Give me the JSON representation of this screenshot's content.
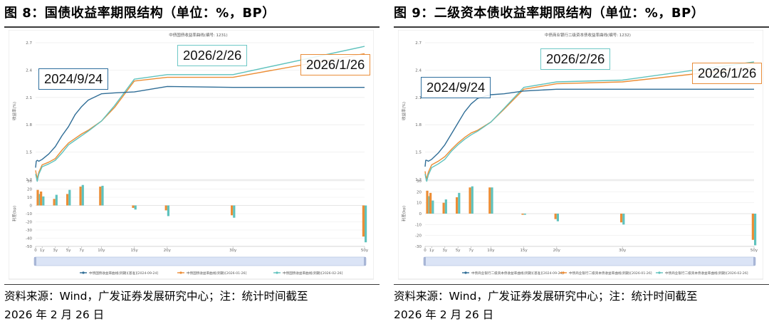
{
  "panels": [
    {
      "figure_title": "图 8：国债收益率期限结构（单位：%，BP）",
      "source_line1": "资料来源：Wind，广发证券发展研究中心；注：统计时间截至",
      "source_line2": "2026 年 2 月 26 日",
      "annotations": [
        "2024/9/24",
        "2026/2/26",
        "2026/1/26"
      ]
    },
    {
      "figure_title": "图 9：二级资本债收益率期限结构（单位：%，BP）",
      "source_line1": "资料来源：Wind，广发证券发展研究中心；注：统计时间截至",
      "source_line2": "2026 年 2 月 26 日",
      "annotations": [
        "2024/9/24",
        "2026/2/26",
        "2026/1/26"
      ]
    }
  ],
  "colors": {
    "blue": "#2f6d96",
    "orange": "#ec8d35",
    "cyan": "#5fc2bd"
  },
  "chart_data": [
    {
      "type": "line",
      "title": "中债国债收益率曲线(编号: 1231)",
      "ylabel": "收益率(%)",
      "ylabel2": "利差(bp)",
      "ylim": [
        1.2,
        2.7
      ],
      "yticks": [
        1.2,
        1.5,
        1.8,
        2.1,
        2.4,
        2.7
      ],
      "ylim2": [
        -50,
        30
      ],
      "yticks2": [
        30,
        20,
        10,
        0,
        -10,
        -20,
        -30,
        -40,
        -50
      ],
      "xticks": [
        0,
        1,
        3,
        5,
        7,
        10,
        15,
        20,
        30,
        50
      ],
      "xticklabels": [
        "0",
        "1y",
        "3y",
        "5y",
        "7y",
        "10y",
        "15y",
        "20y",
        "30y",
        "50y"
      ],
      "series": [
        {
          "name": "中债国债收益率曲线(到期)[基准][2024-09-24]",
          "color": "#2f6d96",
          "x": [
            0,
            0.1,
            0.25,
            0.5,
            1,
            2,
            3,
            4,
            5,
            6,
            7,
            8,
            10,
            12,
            15,
            20,
            30,
            50
          ],
          "y": [
            1.33,
            1.4,
            1.41,
            1.4,
            1.42,
            1.48,
            1.56,
            1.68,
            1.78,
            1.91,
            2.0,
            2.07,
            2.14,
            2.15,
            2.16,
            2.22,
            2.21,
            2.21
          ]
        },
        {
          "name": "中债国债收益率曲线(到期)[2026-01-26]",
          "color": "#ec8d35",
          "x": [
            0,
            0.1,
            0.25,
            0.5,
            1,
            2,
            3,
            4,
            5,
            6,
            7,
            8,
            10,
            12,
            15,
            20,
            30,
            50
          ],
          "y": [
            1.3,
            1.26,
            1.21,
            1.28,
            1.36,
            1.39,
            1.43,
            1.52,
            1.6,
            1.65,
            1.7,
            1.74,
            1.84,
            1.99,
            2.28,
            2.32,
            2.32,
            2.58
          ]
        },
        {
          "name": "中债国债收益率曲线(到期)[2026-02-26]",
          "color": "#5fc2bd",
          "x": [
            0,
            0.1,
            0.25,
            0.5,
            1,
            2,
            3,
            4,
            5,
            6,
            7,
            8,
            10,
            12,
            15,
            20,
            30,
            50
          ],
          "y": [
            1.26,
            1.23,
            1.18,
            1.26,
            1.34,
            1.37,
            1.41,
            1.49,
            1.58,
            1.63,
            1.68,
            1.73,
            1.84,
            2.01,
            2.3,
            2.35,
            2.35,
            2.66
          ]
        }
      ],
      "bars": {
        "x": [
          0.5,
          1,
          3,
          5,
          7,
          10,
          15,
          20,
          30,
          50
        ],
        "orange": [
          19,
          17,
          8,
          14,
          23,
          23,
          -3,
          -6,
          -12,
          -38
        ],
        "cyan": [
          14,
          11,
          13,
          19,
          25,
          24,
          -5,
          -13,
          -15,
          -45
        ]
      }
    },
    {
      "type": "line",
      "title": "中债商业银行二级资本债收益率曲线(编号: 1232)",
      "ylabel": "收益率(%)",
      "ylabel2": "利差(bp)",
      "ylim": [
        1.2,
        2.7
      ],
      "yticks": [
        1.2,
        1.5,
        1.8,
        2.1,
        2.4,
        2.7
      ],
      "ylim2": [
        -30,
        30
      ],
      "yticks2": [
        30,
        20,
        10,
        0,
        -10,
        -20,
        -30
      ],
      "xticks": [
        0,
        1,
        3,
        5,
        7,
        10,
        15,
        20,
        30,
        50
      ],
      "xticklabels": [
        "0",
        "1y",
        "3y",
        "5y",
        "7y",
        "10y",
        "15y",
        "20y",
        "30y",
        "50y"
      ],
      "series": [
        {
          "name": "中债商业银行二级资本债收益率曲线(到期)[基准][2024-09-24]",
          "color": "#2f6d96",
          "x": [
            0,
            0.1,
            0.25,
            0.5,
            1,
            2,
            3,
            4,
            5,
            6,
            7,
            8,
            10,
            12,
            15,
            20,
            30,
            50
          ],
          "y": [
            1.34,
            1.41,
            1.41,
            1.4,
            1.42,
            1.49,
            1.58,
            1.7,
            1.82,
            1.94,
            2.03,
            2.09,
            2.13,
            2.14,
            2.17,
            2.19,
            2.19,
            2.19
          ]
        },
        {
          "name": "中债商业银行二级资本债收益率曲线(到期)[2026-01-26]",
          "color": "#ec8d35",
          "x": [
            0,
            0.1,
            0.25,
            0.5,
            1,
            2,
            3,
            4,
            5,
            6,
            7,
            8,
            10,
            12,
            15,
            20,
            30,
            50
          ],
          "y": [
            1.29,
            1.24,
            1.21,
            1.28,
            1.36,
            1.4,
            1.45,
            1.53,
            1.6,
            1.66,
            1.71,
            1.74,
            1.83,
            1.97,
            2.19,
            2.25,
            2.27,
            2.43
          ]
        },
        {
          "name": "中债商业银行二级资本债收益率曲线(到期)[2026-02-26]",
          "color": "#5fc2bd",
          "x": [
            0,
            0.1,
            0.25,
            0.5,
            1,
            2,
            3,
            4,
            5,
            6,
            7,
            8,
            10,
            12,
            15,
            20,
            30,
            50
          ],
          "y": [
            1.26,
            1.22,
            1.18,
            1.25,
            1.33,
            1.37,
            1.42,
            1.51,
            1.58,
            1.64,
            1.69,
            1.73,
            1.83,
            1.98,
            2.21,
            2.27,
            2.29,
            2.49
          ]
        }
      ],
      "bars": {
        "x": [
          0.5,
          1,
          3,
          5,
          7,
          10,
          15,
          20,
          30,
          50
        ],
        "orange": [
          21,
          19,
          10,
          15,
          24,
          24,
          -1,
          -5,
          -8,
          -24
        ],
        "cyan": [
          16,
          12,
          13,
          19,
          25,
          24,
          -1,
          -7,
          -10,
          -29
        ]
      }
    }
  ]
}
